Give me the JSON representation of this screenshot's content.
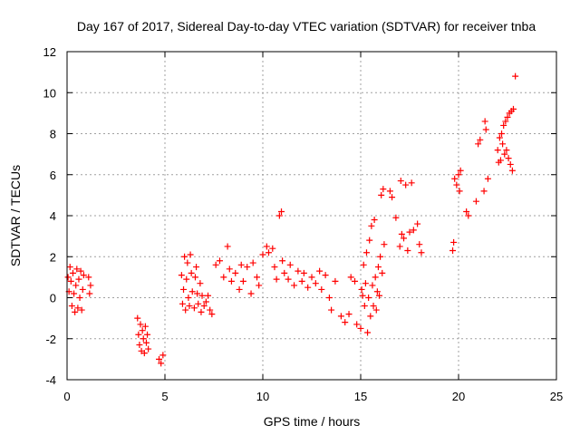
{
  "chart_data": {
    "type": "scatter",
    "title": "Day 167 of 2017, Sidereal Day-to-day VTEC variation (SDTVAR) for receiver tnba",
    "xlabel": "GPS time / hours",
    "ylabel": "SDTVAR / TECUs",
    "xlim": [
      0,
      25
    ],
    "ylim": [
      -4,
      12
    ],
    "xticks": [
      0,
      5,
      10,
      15,
      20,
      25
    ],
    "yticks": [
      -4,
      -2,
      0,
      2,
      4,
      6,
      8,
      10,
      12
    ],
    "grid": true,
    "marker": "+",
    "color": "#ff0000",
    "series": [
      {
        "name": "tnba",
        "points": [
          [
            0.05,
            1.0
          ],
          [
            0.1,
            0.3
          ],
          [
            0.15,
            1.5
          ],
          [
            0.2,
            0.8
          ],
          [
            0.25,
            -0.4
          ],
          [
            0.3,
            1.2
          ],
          [
            0.35,
            0.2
          ],
          [
            0.4,
            -0.7
          ],
          [
            0.45,
            0.6
          ],
          [
            0.5,
            1.4
          ],
          [
            0.55,
            -0.5
          ],
          [
            0.6,
            0.9
          ],
          [
            0.65,
            0.0
          ],
          [
            0.7,
            1.3
          ],
          [
            0.75,
            -0.6
          ],
          [
            0.8,
            0.4
          ],
          [
            0.85,
            1.1
          ],
          [
            1.1,
            1.0
          ],
          [
            1.15,
            0.2
          ],
          [
            1.2,
            0.6
          ],
          [
            3.6,
            -1.0
          ],
          [
            3.65,
            -1.8
          ],
          [
            3.7,
            -2.3
          ],
          [
            3.75,
            -1.3
          ],
          [
            3.8,
            -2.6
          ],
          [
            3.85,
            -1.6
          ],
          [
            3.9,
            -2.0
          ],
          [
            3.95,
            -2.7
          ],
          [
            4.0,
            -1.4
          ],
          [
            4.05,
            -2.2
          ],
          [
            4.1,
            -1.8
          ],
          [
            4.15,
            -2.5
          ],
          [
            4.7,
            -3.0
          ],
          [
            4.8,
            -3.2
          ],
          [
            4.9,
            -2.8
          ],
          [
            5.85,
            1.1
          ],
          [
            5.9,
            -0.3
          ],
          [
            5.95,
            0.4
          ],
          [
            6.0,
            2.0
          ],
          [
            6.05,
            -0.6
          ],
          [
            6.1,
            0.9
          ],
          [
            6.15,
            1.7
          ],
          [
            6.2,
            0.0
          ],
          [
            6.25,
            -0.4
          ],
          [
            6.3,
            2.1
          ],
          [
            6.35,
            1.2
          ],
          [
            6.4,
            0.3
          ],
          [
            6.5,
            -0.5
          ],
          [
            6.55,
            1.0
          ],
          [
            6.6,
            1.5
          ],
          [
            6.65,
            0.2
          ],
          [
            6.7,
            -0.3
          ],
          [
            6.8,
            0.7
          ],
          [
            6.85,
            -0.7
          ],
          [
            6.9,
            0.1
          ],
          [
            7.0,
            -0.4
          ],
          [
            7.1,
            -0.2
          ],
          [
            7.2,
            0.1
          ],
          [
            7.3,
            -0.6
          ],
          [
            7.4,
            -0.8
          ],
          [
            7.6,
            1.6
          ],
          [
            7.8,
            1.8
          ],
          [
            8.0,
            1.0
          ],
          [
            8.2,
            2.5
          ],
          [
            8.3,
            1.4
          ],
          [
            8.4,
            0.8
          ],
          [
            8.6,
            1.2
          ],
          [
            8.8,
            0.4
          ],
          [
            8.9,
            1.6
          ],
          [
            9.0,
            0.8
          ],
          [
            9.2,
            1.5
          ],
          [
            9.4,
            0.2
          ],
          [
            9.5,
            1.7
          ],
          [
            9.7,
            1.0
          ],
          [
            9.8,
            0.6
          ],
          [
            10.0,
            2.1
          ],
          [
            10.2,
            2.5
          ],
          [
            10.3,
            2.2
          ],
          [
            10.5,
            2.4
          ],
          [
            10.6,
            1.5
          ],
          [
            10.7,
            0.9
          ],
          [
            10.85,
            4.0
          ],
          [
            10.95,
            4.2
          ],
          [
            11.0,
            1.8
          ],
          [
            11.1,
            1.2
          ],
          [
            11.3,
            0.9
          ],
          [
            11.4,
            1.6
          ],
          [
            11.6,
            0.6
          ],
          [
            11.8,
            1.3
          ],
          [
            12.0,
            0.8
          ],
          [
            12.1,
            1.2
          ],
          [
            12.3,
            0.5
          ],
          [
            12.5,
            1.0
          ],
          [
            12.7,
            0.7
          ],
          [
            12.9,
            1.3
          ],
          [
            13.0,
            0.4
          ],
          [
            13.2,
            1.1
          ],
          [
            13.4,
            0.0
          ],
          [
            13.5,
            -0.6
          ],
          [
            13.7,
            0.8
          ],
          [
            14.0,
            -0.9
          ],
          [
            14.2,
            -1.2
          ],
          [
            14.4,
            -0.8
          ],
          [
            14.5,
            1.0
          ],
          [
            14.7,
            0.8
          ],
          [
            14.8,
            -1.3
          ],
          [
            15.0,
            -1.5
          ],
          [
            15.05,
            0.4
          ],
          [
            15.1,
            0.1
          ],
          [
            15.15,
            1.6
          ],
          [
            15.2,
            -0.4
          ],
          [
            15.25,
            0.7
          ],
          [
            15.3,
            2.2
          ],
          [
            15.35,
            -1.7
          ],
          [
            15.4,
            0.0
          ],
          [
            15.45,
            2.8
          ],
          [
            15.5,
            -0.9
          ],
          [
            15.55,
            3.5
          ],
          [
            15.6,
            0.6
          ],
          [
            15.65,
            -0.4
          ],
          [
            15.7,
            3.8
          ],
          [
            15.75,
            1.0
          ],
          [
            15.8,
            -0.6
          ],
          [
            15.85,
            0.3
          ],
          [
            15.9,
            1.5
          ],
          [
            15.95,
            0.1
          ],
          [
            16.0,
            2.0
          ],
          [
            16.05,
            5.0
          ],
          [
            16.1,
            1.2
          ],
          [
            16.15,
            5.3
          ],
          [
            16.2,
            2.6
          ],
          [
            16.5,
            5.2
          ],
          [
            16.6,
            4.9
          ],
          [
            16.8,
            3.9
          ],
          [
            17.0,
            2.5
          ],
          [
            17.05,
            5.7
          ],
          [
            17.1,
            3.1
          ],
          [
            17.2,
            2.9
          ],
          [
            17.3,
            5.5
          ],
          [
            17.4,
            2.3
          ],
          [
            17.5,
            3.2
          ],
          [
            17.6,
            5.6
          ],
          [
            17.7,
            3.3
          ],
          [
            17.9,
            3.6
          ],
          [
            18.0,
            2.6
          ],
          [
            18.1,
            2.2
          ],
          [
            19.7,
            2.3
          ],
          [
            19.75,
            2.7
          ],
          [
            19.8,
            5.8
          ],
          [
            19.9,
            5.5
          ],
          [
            20.0,
            6.0
          ],
          [
            20.05,
            5.2
          ],
          [
            20.1,
            6.2
          ],
          [
            20.4,
            4.2
          ],
          [
            20.5,
            4.0
          ],
          [
            20.9,
            4.7
          ],
          [
            21.0,
            7.5
          ],
          [
            21.1,
            7.7
          ],
          [
            21.3,
            5.2
          ],
          [
            21.35,
            8.6
          ],
          [
            21.4,
            8.2
          ],
          [
            21.5,
            5.8
          ],
          [
            22.0,
            7.2
          ],
          [
            22.05,
            6.6
          ],
          [
            22.1,
            7.8
          ],
          [
            22.15,
            6.7
          ],
          [
            22.2,
            8.0
          ],
          [
            22.25,
            7.5
          ],
          [
            22.3,
            8.4
          ],
          [
            22.35,
            7.0
          ],
          [
            22.4,
            8.6
          ],
          [
            22.45,
            7.2
          ],
          [
            22.5,
            8.8
          ],
          [
            22.55,
            6.8
          ],
          [
            22.6,
            9.0
          ],
          [
            22.65,
            6.5
          ],
          [
            22.7,
            9.1
          ],
          [
            22.75,
            6.2
          ],
          [
            22.8,
            9.2
          ],
          [
            22.9,
            10.8
          ]
        ]
      }
    ]
  }
}
